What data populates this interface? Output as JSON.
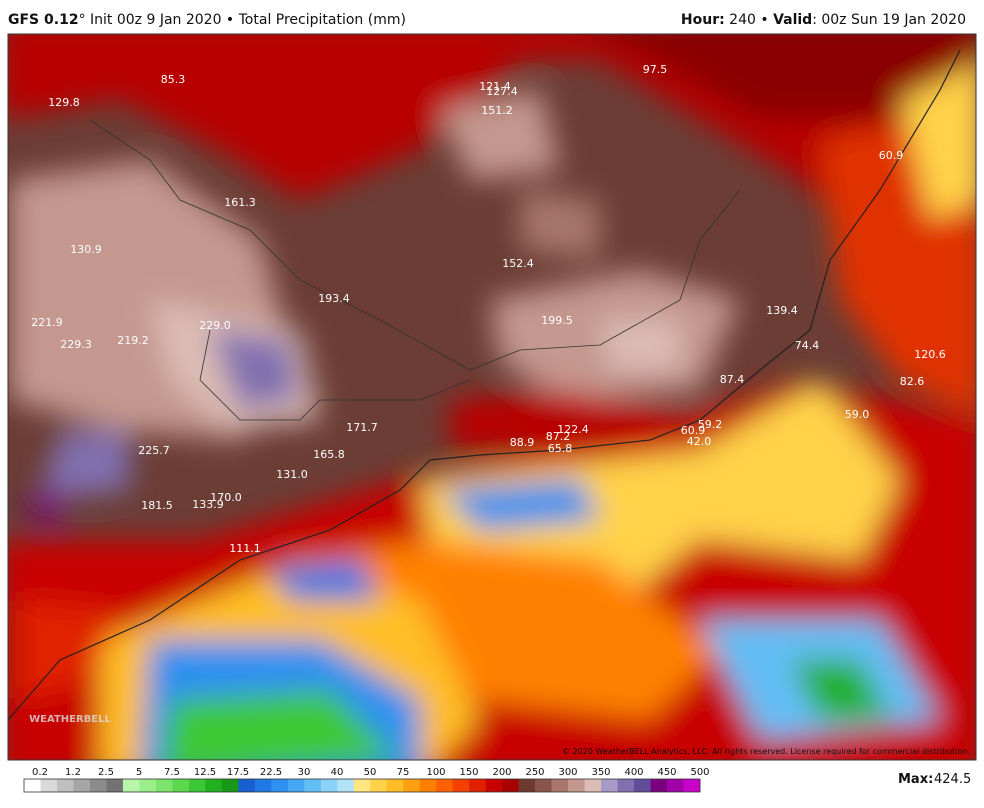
{
  "header": {
    "model": "GFS 0.12",
    "degree": "°",
    "run": "Init 00z 9 Jan 2020 • Total Precipitation (mm)",
    "hour_label": "Hour:",
    "hour": "240 •",
    "valid_label": "Valid",
    "valid": ": 00z Sun 19 Jan 2020"
  },
  "map": {
    "labels": [
      "129.8",
      "85.3",
      "121.4",
      "127.4",
      "97.5",
      "151.2",
      "60.9",
      "161.3",
      "130.9",
      "152.4",
      "193.4",
      "139.4",
      "221.9",
      "229.0",
      "199.5",
      "229.3",
      "219.2",
      "74.4",
      "120.6",
      "87.4",
      "82.6",
      "59.0",
      "171.7",
      "122.4",
      "87.2",
      "60.9",
      "59.2",
      "88.9",
      "65.8",
      "42.0",
      "225.7",
      "165.8",
      "131.0",
      "170.0",
      "181.5",
      "133.9",
      "111.1"
    ],
    "copyright": "© 2020 WeatherBELL Analytics, LLC. All rights reserved. License required for commercial distribution.",
    "watermark": "WEATHERBELL"
  },
  "colorbar": {
    "ticks": [
      "0.2",
      "1.2",
      "2.5",
      "5",
      "7.5",
      "12.5",
      "17.5",
      "22.5",
      "30",
      "40",
      "50",
      "75",
      "100",
      "150",
      "200",
      "250",
      "300",
      "350",
      "400",
      "450",
      "500"
    ],
    "colors": [
      "#ffffff",
      "#d9d9d9",
      "#bfbfbf",
      "#a6a6a6",
      "#8c8c8c",
      "#737373",
      "#b8f5a8",
      "#9aef8a",
      "#7ce46c",
      "#5cd84e",
      "#3cc834",
      "#20b020",
      "#189818",
      "#1a5fd0",
      "#1e78e6",
      "#2e90f0",
      "#44a8f4",
      "#64bef6",
      "#8ad2f8",
      "#b0e2f8",
      "#ffe680",
      "#ffd24a",
      "#ffbe28",
      "#ffa010",
      "#ff8000",
      "#ff6000",
      "#f44000",
      "#e02000",
      "#c80000",
      "#a80000",
      "#6e3a30",
      "#8a5548",
      "#a8766a",
      "#c4988e",
      "#dcbcb4",
      "#a89ac8",
      "#8070b0",
      "#604c98",
      "#7a0080",
      "#a000a8",
      "#c800c8"
    ],
    "max_label": "Max:",
    "max": "424.5"
  }
}
